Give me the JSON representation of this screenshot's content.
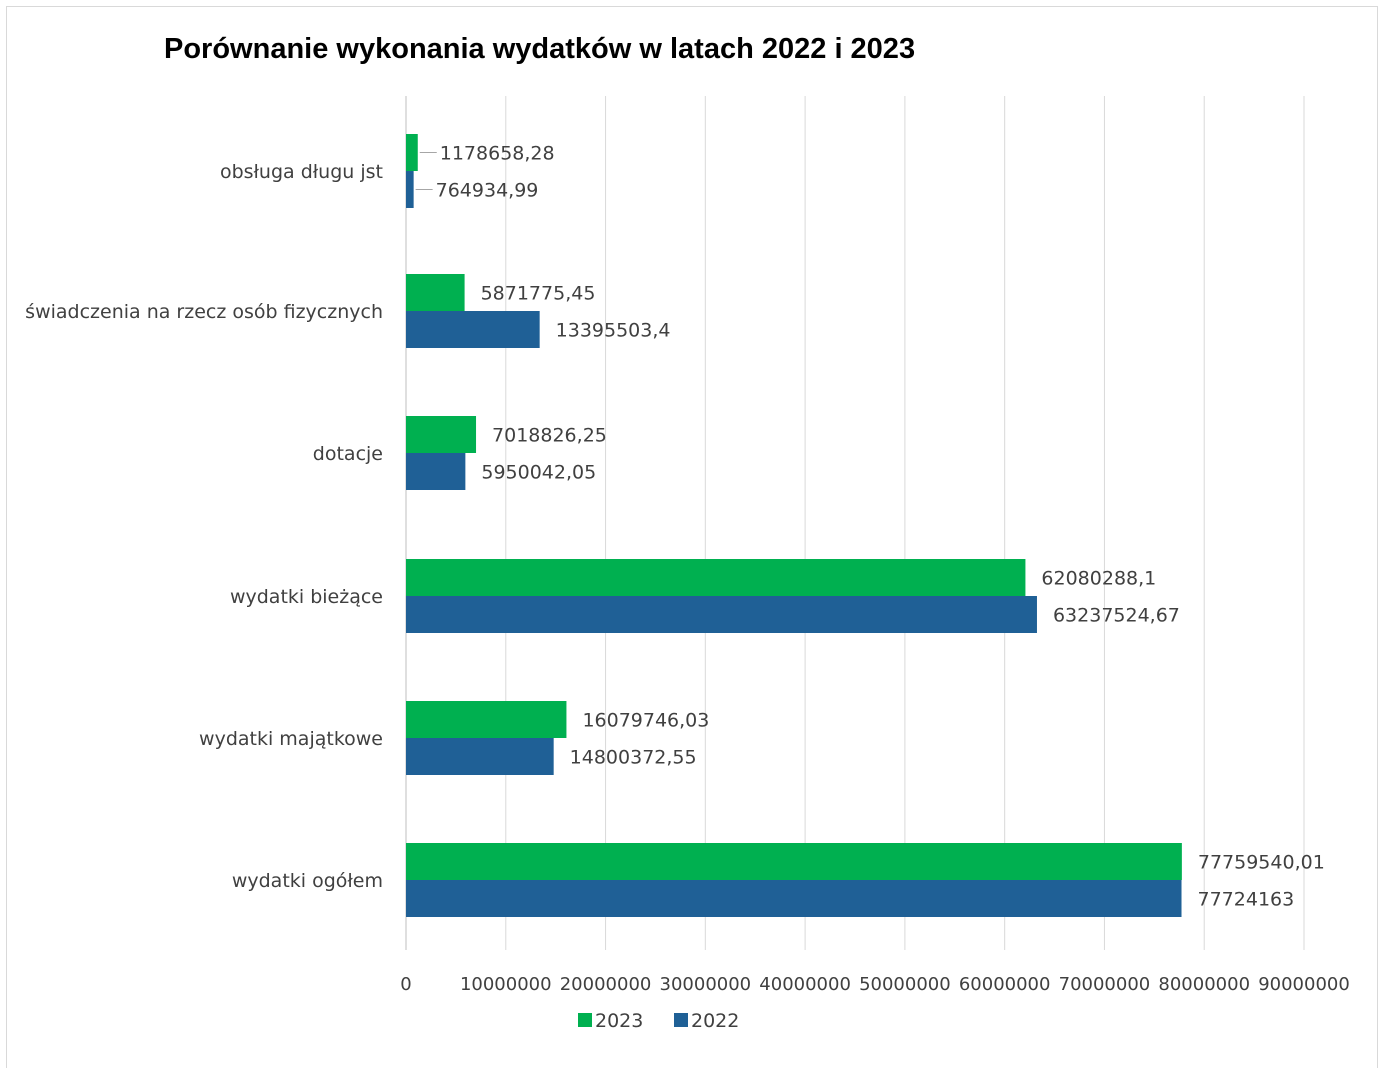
{
  "chart_data": {
    "type": "bar",
    "orientation": "horizontal",
    "title": "Porównanie wykonania wydatków w latach 2022 i 2023",
    "categories": [
      "obsługa długu jst",
      "świadczenia na rzecz osób fizycznych",
      "dotacje",
      "wydatki bieżące",
      "wydatki majątkowe",
      "wydatki ogółem"
    ],
    "series": [
      {
        "name": "2023",
        "color": "#00b050",
        "values": [
          1178658.28,
          5871775.45,
          7018826.25,
          62080288.1,
          16079746.03,
          77759540.01
        ],
        "labels": [
          "1178658,28",
          "5871775,45",
          "7018826,25",
          "62080288,1",
          "16079746,03",
          "77759540,01"
        ]
      },
      {
        "name": "2022",
        "color": "#1f6096",
        "values": [
          764934.99,
          13395503.4,
          5950042.05,
          63237524.67,
          14800372.55,
          77724163
        ],
        "labels": [
          "764934,99",
          "13395503,4",
          "5950042,05",
          "63237524,67",
          "14800372,55",
          "77724163"
        ]
      }
    ],
    "xlim": [
      0,
      90000000
    ],
    "ticks": [
      0,
      10000000,
      20000000,
      30000000,
      40000000,
      50000000,
      60000000,
      70000000,
      80000000,
      90000000
    ],
    "tick_labels": [
      "0",
      "10000000",
      "20000000",
      "30000000",
      "40000000",
      "50000000",
      "60000000",
      "70000000",
      "80000000",
      "90000000"
    ],
    "grid": "vertical",
    "legend_position": "bottom",
    "xlabel": "",
    "ylabel": ""
  }
}
